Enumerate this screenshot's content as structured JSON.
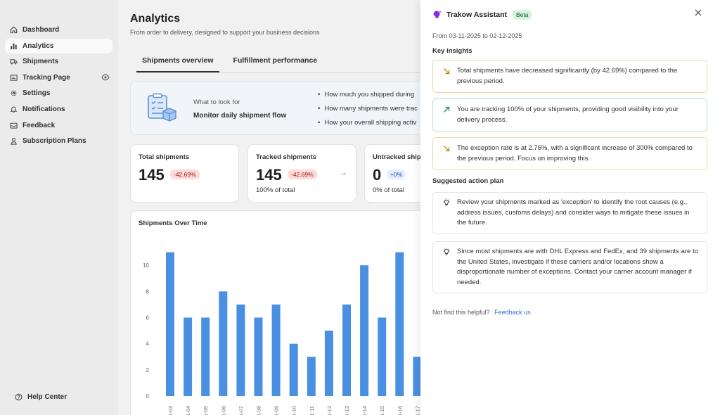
{
  "sidebar": {
    "items": [
      {
        "label": "Dashboard",
        "icon": "home-icon"
      },
      {
        "label": "Analytics",
        "icon": "bar-chart-icon",
        "active": true
      },
      {
        "label": "Shipments",
        "icon": "truck-icon"
      },
      {
        "label": "Tracking Page",
        "icon": "tracking-icon"
      },
      {
        "label": "Settings",
        "icon": "gear-icon"
      },
      {
        "label": "Notifications",
        "icon": "bell-icon"
      },
      {
        "label": "Feedback",
        "icon": "inbox-icon"
      },
      {
        "label": "Subscription Plans",
        "icon": "person-icon"
      }
    ],
    "help_label": "Help Center"
  },
  "header": {
    "title": "Analytics",
    "subtitle": "From order to delivery, designed to support your business decisions"
  },
  "tabs": [
    {
      "label": "Shipments overview",
      "active": true
    },
    {
      "label": "Fulfillment performance",
      "active": false
    }
  ],
  "info_card": {
    "look_label": "What to look for",
    "title": "Monitor daily shipment flow",
    "bullets": [
      "How much you shipped during",
      "How many shipments were trac",
      "How your overall shipping activ"
    ]
  },
  "stats": [
    {
      "label": "Total shipments",
      "value": "145",
      "change": "-42.69%",
      "sub": ""
    },
    {
      "label": "Tracked shipments",
      "value": "145",
      "change": "-42.69%",
      "sub": "100% of total"
    },
    {
      "label": "Untracked ship",
      "value": "0",
      "change": "+0%",
      "sub": "0% of total"
    }
  ],
  "chart_data": {
    "type": "bar",
    "title": "Shipments Over Time",
    "categories": [
      "1-03",
      "1-04",
      "1-05",
      "1-06",
      "1-07",
      "1-08",
      "1-09",
      "1-10",
      "1-11",
      "1-12",
      "1-13",
      "1-14",
      "1-15",
      "1-16",
      "1-17"
    ],
    "values": [
      11,
      6,
      6,
      8,
      7,
      6,
      7,
      4,
      3,
      5,
      7,
      10,
      6,
      11,
      3
    ],
    "yticks": [
      0,
      2,
      4,
      6,
      8,
      10
    ],
    "ylim": [
      0,
      12
    ],
    "color": "#4a90e2"
  },
  "assistant": {
    "title": "Trakow Assistant",
    "badge": "Beta",
    "date_range": "From 03-11-2025 to 02-12-2025",
    "insights_heading": "Key insights",
    "insights": [
      {
        "text": "Total shipments have decreased significantly (by 42.69%) compared to the previous period.",
        "trend": "down"
      },
      {
        "text": "You are tracking 100% of your shipments, providing good visibility into your delivery process.",
        "trend": "up"
      },
      {
        "text": "The exception rate is at 2.76%, with a significant increase of 300% compared to the previous period. Focus on improving this.",
        "trend": "down"
      }
    ],
    "actions_heading": "Suggested action plan",
    "actions": [
      "Review your shipments marked as 'exception' to identify the root causes (e.g., address issues, customs delays) and consider ways to mitigate these issues in the future.",
      "Since most shipments are with DHL Express and FedEx, and 39 shipments are to the United States, investigate if these carriers and/or locations show a disproportionate number of exceptions. Contact your carrier account manager if needed."
    ],
    "feedback_prompt": "Not find this helpful?",
    "feedback_link": "Feedback us"
  },
  "colors": {
    "accent": "#4a90e2",
    "warn": "#b98900",
    "good": "#29845a",
    "logo": "#8a2be2"
  }
}
